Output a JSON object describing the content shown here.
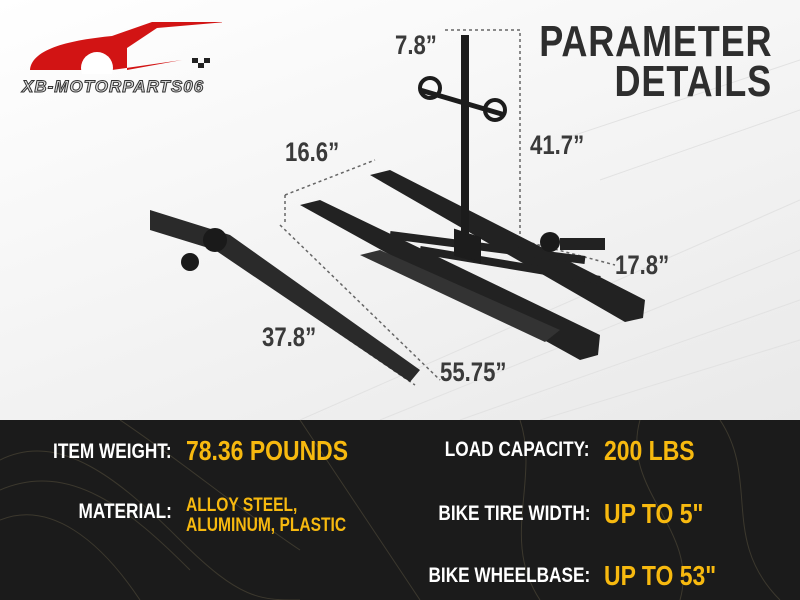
{
  "brand": {
    "logo_text": "XB-MOTORPARTS06",
    "logo_color": "#d21414"
  },
  "title": {
    "line1": "PARAMETER",
    "line2": "DETAILS"
  },
  "dimensions": {
    "mast_width": "7.8”",
    "tray_spacing": "16.6”",
    "mast_height": "41.7”",
    "rack_width": "17.8”",
    "ramp_length": "37.8”",
    "tray_length": "55.75”"
  },
  "specs": {
    "item_weight": {
      "label": "ITEM WEIGHT:",
      "value": "78.36 POUNDS"
    },
    "material": {
      "label": "MATERIAL:",
      "value_line1": "ALLOY STEEL,",
      "value_line2": "ALUMINUM, PLASTIC"
    },
    "load_capacity": {
      "label": "LOAD CAPACITY:",
      "value": "200 LBS"
    },
    "tire_width": {
      "label": "BIKE TIRE WIDTH:",
      "value": "UP TO 5\""
    },
    "wheelbase": {
      "label": "BIKE WHEELBASE:",
      "value": "UP TO 53\""
    }
  },
  "colors": {
    "accent": "#f7b90f",
    "band": "#1b1b1b"
  }
}
